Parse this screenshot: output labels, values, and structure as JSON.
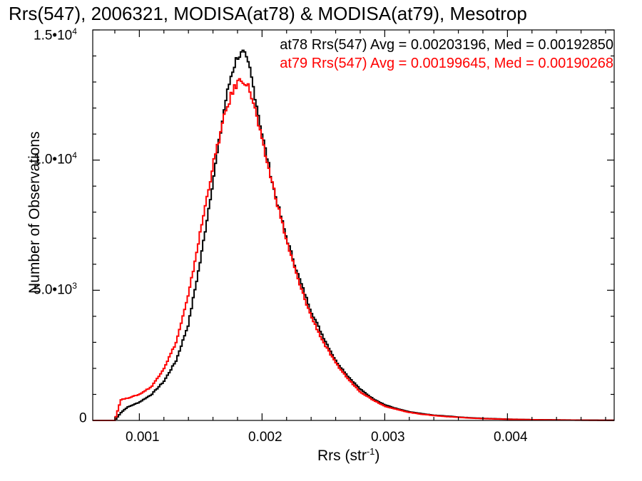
{
  "chart_data": {
    "type": "line",
    "title": "Rrs(547), 2006321, MODISA(at78) & MODISA(at79), Mesotrop",
    "xlabel": "Rrs (str",
    "xlabel_exp": "-1",
    "xlabel_suffix": ")",
    "ylabel": "Number of Observations",
    "xlim": [
      0.00062,
      0.00487
    ],
    "ylim": [
      0,
      15000
    ],
    "x_ticks": [
      {
        "value": 0.001,
        "label": "0.001"
      },
      {
        "value": 0.002,
        "label": "0.002"
      },
      {
        "value": 0.003,
        "label": "0.003"
      },
      {
        "value": 0.004,
        "label": "0.004"
      }
    ],
    "y_ticks": [
      {
        "value": 0,
        "mant": "0",
        "exp": ""
      },
      {
        "value": 5000,
        "mant": "5.0•10",
        "exp": "3"
      },
      {
        "value": 10000,
        "mant": "1.0•10",
        "exp": "4"
      },
      {
        "value": 15000,
        "mant": "1.5•10",
        "exp": "4"
      }
    ],
    "legend": [
      {
        "text": "at78 Rrs(547) Avg = 0.00203196, Med = 0.00192850",
        "color": "#000000"
      },
      {
        "text": "at79 Rrs(547) Avg = 0.00199645, Med = 0.00190268",
        "color": "#ff0000"
      }
    ],
    "legend_placement": "top-right",
    "series": [
      {
        "name": "at78",
        "color": "#000000",
        "x": [
          0.00062,
          0.0008,
          0.00085,
          0.0009,
          0.001,
          0.0011,
          0.0012,
          0.0013,
          0.0014,
          0.0015,
          0.0016,
          0.0017,
          0.00175,
          0.0018,
          0.00185,
          0.0019,
          0.00195,
          0.002,
          0.0021,
          0.0022,
          0.0023,
          0.0024,
          0.0025,
          0.0026,
          0.0027,
          0.0028,
          0.0029,
          0.003,
          0.0031,
          0.0032,
          0.0033,
          0.0034,
          0.0035,
          0.0036,
          0.0037,
          0.0038,
          0.004,
          0.0042,
          0.0044,
          0.0046,
          0.00487
        ],
        "y": [
          0,
          0,
          300,
          500,
          700,
          1000,
          1500,
          2300,
          3700,
          6200,
          9200,
          12200,
          13300,
          14000,
          14100,
          13500,
          12300,
          11000,
          8800,
          7000,
          5500,
          4200,
          3200,
          2300,
          1700,
          1200,
          850,
          600,
          450,
          330,
          260,
          200,
          170,
          130,
          100,
          80,
          50,
          30,
          20,
          12,
          5
        ]
      },
      {
        "name": "at79",
        "color": "#ff0000",
        "x": [
          0.00062,
          0.0008,
          0.00085,
          0.0009,
          0.001,
          0.0011,
          0.0012,
          0.0013,
          0.0014,
          0.0015,
          0.0016,
          0.0017,
          0.00175,
          0.0018,
          0.00185,
          0.0019,
          0.00195,
          0.002,
          0.0021,
          0.0022,
          0.0023,
          0.0024,
          0.0025,
          0.0026,
          0.0027,
          0.0028,
          0.0029,
          0.003,
          0.0031,
          0.0032,
          0.0033,
          0.0034,
          0.0035,
          0.0036,
          0.0037,
          0.0038,
          0.004,
          0.0042,
          0.0044,
          0.0046,
          0.00487
        ],
        "y": [
          0,
          0,
          800,
          850,
          1000,
          1300,
          2000,
          3000,
          4800,
          7300,
          9800,
          11800,
          12500,
          13000,
          13100,
          12700,
          11800,
          10700,
          8800,
          6900,
          5300,
          4000,
          3000,
          2200,
          1600,
          1100,
          800,
          550,
          420,
          310,
          240,
          190,
          150,
          120,
          90,
          70,
          45,
          28,
          18,
          10,
          5
        ]
      }
    ]
  }
}
